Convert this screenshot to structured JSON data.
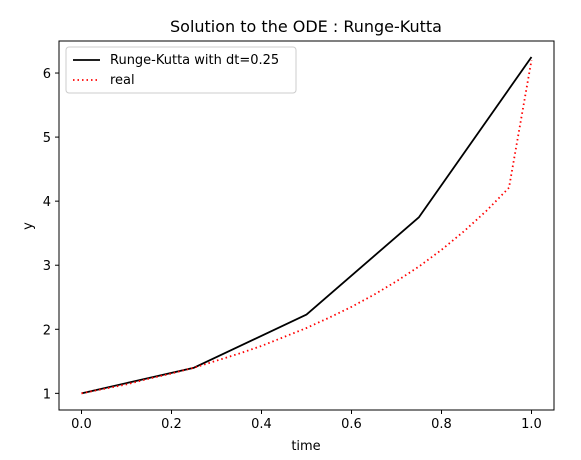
{
  "chart_data": {
    "type": "line",
    "title": "Solution to the ODE : Runge-Kutta",
    "xlabel": "time",
    "ylabel": "y",
    "xlim": [
      -0.05,
      1.05
    ],
    "ylim": [
      0.74,
      6.5
    ],
    "xticks": [
      0.0,
      0.2,
      0.4,
      0.6,
      0.8,
      1.0
    ],
    "xtick_labels": [
      "0.0",
      "0.2",
      "0.4",
      "0.6",
      "0.8",
      "1.0"
    ],
    "yticks": [
      1,
      2,
      3,
      4,
      5,
      6
    ],
    "ytick_labels": [
      "1",
      "2",
      "3",
      "4",
      "5",
      "6"
    ],
    "grid": false,
    "legend_position": "top-left",
    "series": [
      {
        "name": "Runge-Kutta with dt=0.25",
        "style": "solid",
        "color": "#000000",
        "x": [
          0.0,
          0.25,
          0.5,
          0.75,
          1.0
        ],
        "y": [
          1.0,
          1.4,
          2.23,
          3.75,
          6.25
        ]
      },
      {
        "name": "real",
        "style": "dotted",
        "color": "#ff0000",
        "x": [
          0.0,
          0.05,
          0.1,
          0.15,
          0.2,
          0.25,
          0.3,
          0.35,
          0.4,
          0.45,
          0.5,
          0.55,
          0.6,
          0.65,
          0.7,
          0.75,
          0.8,
          0.85,
          0.9,
          0.95,
          1.0
        ],
        "y": [
          1.0,
          1.07,
          1.14,
          1.23,
          1.31,
          1.4,
          1.51,
          1.62,
          1.74,
          1.88,
          2.02,
          2.18,
          2.35,
          2.54,
          2.75,
          2.98,
          3.24,
          3.53,
          3.85,
          4.21,
          6.2
        ]
      }
    ]
  }
}
